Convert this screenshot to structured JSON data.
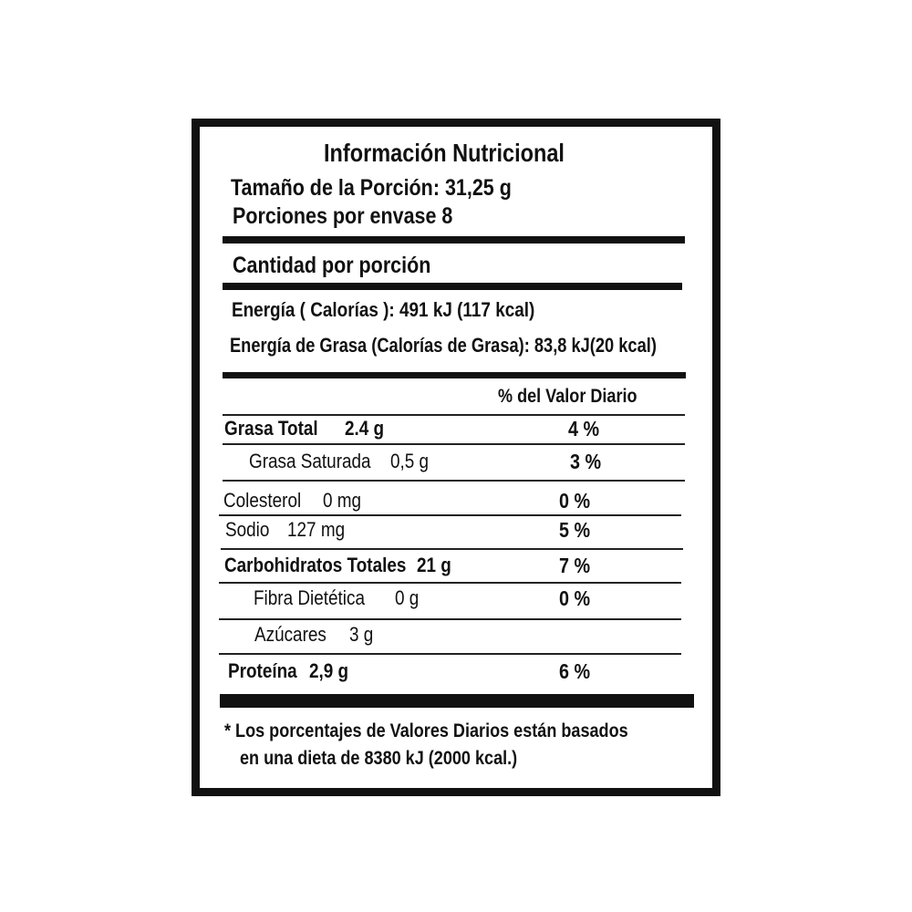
{
  "label": {
    "title": "Información Nutricional",
    "serving_size": "Tamaño de la Porción:  31,25 g",
    "servings_per_container": "Porciones por envase  8",
    "amount_per_serving": "Cantidad por porción",
    "energy": "Energía  ( Calorías ): 491 kJ   (117 kcal)",
    "fat_energy": "Energía de Grasa (Calorías de Grasa): 83,8 kJ(20 kcal)",
    "daily_value_header": "% del Valor Diario",
    "nutrients": [
      {
        "name": "Grasa Total",
        "amount": "2.4 g",
        "dv": "4 %",
        "bold": true
      },
      {
        "name": "Grasa Saturada",
        "amount": "0,5 g",
        "dv": "3 %",
        "bold": false
      },
      {
        "name": "Colesterol",
        "amount": "0 mg",
        "dv": "0 %",
        "bold": false
      },
      {
        "name": "Sodio",
        "amount": "127 mg",
        "dv": "5 %",
        "bold": false
      },
      {
        "name": "Carbohidratos Totales",
        "amount": "21 g",
        "dv": "7 %",
        "bold": true
      },
      {
        "name": "Fibra Dietética",
        "amount": "0 g",
        "dv": "0 %",
        "bold": false
      },
      {
        "name": "Azúcares",
        "amount": "3 g",
        "dv": "",
        "bold": false
      },
      {
        "name": "Proteína",
        "amount": "2,9 g",
        "dv": "6 %",
        "bold": true
      }
    ],
    "footnote_line1": "* Los porcentajes de Valores Diarios están basados",
    "footnote_line2": "en una dieta de 8380 kJ (2000 kcal.)"
  }
}
